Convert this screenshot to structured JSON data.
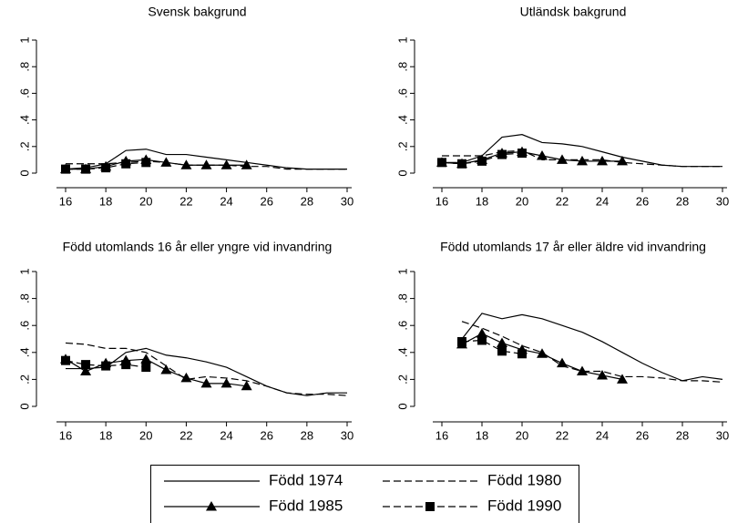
{
  "chart_data": [
    {
      "type": "line",
      "title": "Svensk bakgrund",
      "x": [
        16,
        17,
        18,
        19,
        20,
        21,
        22,
        23,
        24,
        25,
        26,
        27,
        28,
        29,
        30
      ],
      "xlim": [
        16,
        30
      ],
      "xticks": [
        16,
        18,
        20,
        22,
        24,
        26,
        28,
        30
      ],
      "ylim": [
        0,
        1
      ],
      "yticks": [
        0,
        {
          "value": 0.2,
          "label": ".2"
        },
        {
          "value": 0.4,
          "label": ".4"
        },
        {
          "value": 0.6,
          "label": ".6"
        },
        {
          "value": 0.8,
          "label": ".8"
        },
        1
      ],
      "series": [
        {
          "name": "Född 1974",
          "color": "#000000",
          "line_style": "solid",
          "values": [
            0.03,
            0.04,
            0.07,
            0.17,
            0.18,
            0.14,
            0.14,
            0.12,
            0.1,
            0.08,
            0.06,
            0.04,
            0.03,
            0.03,
            0.03
          ]
        },
        {
          "name": "Född 1980",
          "color": "#000000",
          "line_style": "dashed",
          "values": [
            0.07,
            0.07,
            0.07,
            0.08,
            0.09,
            0.08,
            0.06,
            0.06,
            0.06,
            0.05,
            0.05,
            0.03,
            0.03,
            0.03,
            0.03
          ]
        },
        {
          "name": "Född 1985",
          "color": "#000000",
          "line_style": "solid",
          "marker": "triangle",
          "values": [
            0.03,
            0.03,
            0.05,
            0.09,
            0.1,
            0.08,
            0.06,
            0.06,
            0.06,
            0.06,
            null,
            null,
            null,
            null,
            null
          ]
        },
        {
          "name": "Född 1990",
          "color": "#000000",
          "line_style": "dashed",
          "marker": "square",
          "values": [
            0.03,
            0.03,
            0.04,
            0.07,
            0.08,
            null,
            null,
            null,
            null,
            null,
            null,
            null,
            null,
            null,
            null
          ]
        }
      ]
    },
    {
      "type": "line",
      "title": "Utländsk bakgrund",
      "x": [
        16,
        17,
        18,
        19,
        20,
        21,
        22,
        23,
        24,
        25,
        26,
        27,
        28,
        29,
        30
      ],
      "xlim": [
        16,
        30
      ],
      "xticks": [
        16,
        18,
        20,
        22,
        24,
        26,
        28,
        30
      ],
      "ylim": [
        0,
        1
      ],
      "yticks": [
        0,
        {
          "value": 0.2,
          "label": ".2"
        },
        {
          "value": 0.4,
          "label": ".4"
        },
        {
          "value": 0.6,
          "label": ".6"
        },
        {
          "value": 0.8,
          "label": ".8"
        },
        1
      ],
      "series": [
        {
          "name": "Född 1974",
          "color": "#000000",
          "line_style": "solid",
          "values": [
            0.08,
            0.08,
            0.13,
            0.27,
            0.29,
            0.23,
            0.22,
            0.2,
            0.16,
            0.12,
            0.09,
            0.06,
            0.05,
            0.05,
            0.05
          ]
        },
        {
          "name": "Född 1980",
          "color": "#000000",
          "line_style": "dashed",
          "values": [
            0.13,
            0.13,
            0.13,
            0.16,
            0.17,
            0.1,
            0.1,
            0.1,
            0.1,
            0.08,
            0.07,
            0.06,
            0.05,
            0.05,
            0.05
          ]
        },
        {
          "name": "Född 1985",
          "color": "#000000",
          "line_style": "solid",
          "marker": "triangle",
          "values": [
            0.08,
            0.07,
            0.1,
            0.15,
            0.16,
            0.13,
            0.1,
            0.09,
            0.09,
            0.09,
            null,
            null,
            null,
            null,
            null
          ]
        },
        {
          "name": "Född 1990",
          "color": "#000000",
          "line_style": "dashed",
          "marker": "square",
          "values": [
            0.08,
            0.07,
            0.09,
            0.14,
            0.15,
            null,
            null,
            null,
            null,
            null,
            null,
            null,
            null,
            null,
            null
          ]
        }
      ]
    },
    {
      "type": "line",
      "title": "Född utomlands 16 år eller yngre vid invandring",
      "x": [
        16,
        17,
        18,
        19,
        20,
        21,
        22,
        23,
        24,
        25,
        26,
        27,
        28,
        29,
        30
      ],
      "xlim": [
        16,
        30
      ],
      "xticks": [
        16,
        18,
        20,
        22,
        24,
        26,
        28,
        30
      ],
      "ylim": [
        0,
        1
      ],
      "yticks": [
        0,
        {
          "value": 0.2,
          "label": ".2"
        },
        {
          "value": 0.4,
          "label": ".4"
        },
        {
          "value": 0.6,
          "label": ".6"
        },
        {
          "value": 0.8,
          "label": ".8"
        },
        1
      ],
      "series": [
        {
          "name": "Född 1974",
          "color": "#000000",
          "line_style": "solid",
          "values": [
            0.28,
            0.28,
            0.29,
            0.4,
            0.43,
            0.38,
            0.36,
            0.33,
            0.29,
            0.22,
            0.15,
            0.1,
            0.08,
            0.1,
            0.1
          ]
        },
        {
          "name": "Född 1980",
          "color": "#000000",
          "line_style": "dashed",
          "values": [
            0.47,
            0.46,
            0.43,
            0.43,
            0.4,
            0.3,
            0.2,
            0.22,
            0.21,
            0.19,
            0.15,
            0.1,
            0.09,
            0.09,
            0.08
          ]
        },
        {
          "name": "Född 1985",
          "color": "#000000",
          "line_style": "solid",
          "marker": "triangle",
          "values": [
            0.35,
            0.26,
            0.32,
            0.34,
            0.35,
            0.27,
            0.21,
            0.17,
            0.17,
            0.15,
            null,
            null,
            null,
            null,
            null
          ]
        },
        {
          "name": "Född 1990",
          "color": "#000000",
          "line_style": "dashed",
          "marker": "square",
          "values": [
            0.34,
            0.31,
            0.3,
            0.31,
            0.29,
            null,
            null,
            null,
            null,
            null,
            null,
            null,
            null,
            null,
            null
          ]
        }
      ]
    },
    {
      "type": "line",
      "title": "Född utomlands 17 år eller äldre vid invandring",
      "x": [
        16,
        17,
        18,
        19,
        20,
        21,
        22,
        23,
        24,
        25,
        26,
        27,
        28,
        29,
        30
      ],
      "xlim": [
        16,
        30
      ],
      "xticks": [
        16,
        18,
        20,
        22,
        24,
        26,
        28,
        30
      ],
      "ylim": [
        0,
        1
      ],
      "yticks": [
        0,
        {
          "value": 0.2,
          "label": ".2"
        },
        {
          "value": 0.4,
          "label": ".4"
        },
        {
          "value": 0.6,
          "label": ".6"
        },
        {
          "value": 0.8,
          "label": ".8"
        },
        1
      ],
      "series": [
        {
          "name": "Född 1974",
          "color": "#000000",
          "line_style": "solid",
          "values": [
            null,
            0.5,
            0.69,
            0.65,
            0.68,
            0.65,
            0.6,
            0.55,
            0.48,
            0.4,
            0.32,
            0.25,
            0.19,
            0.22,
            0.2
          ]
        },
        {
          "name": "Född 1980",
          "color": "#000000",
          "line_style": "dashed",
          "values": [
            null,
            0.63,
            0.58,
            0.52,
            0.45,
            0.4,
            0.3,
            0.26,
            0.26,
            0.22,
            0.22,
            0.21,
            0.19,
            0.19,
            0.18
          ]
        },
        {
          "name": "Född 1985",
          "color": "#000000",
          "line_style": "solid",
          "marker": "triangle",
          "values": [
            null,
            0.46,
            0.54,
            0.47,
            0.42,
            0.39,
            0.32,
            0.26,
            0.23,
            0.2,
            null,
            null,
            null,
            null,
            null
          ]
        },
        {
          "name": "Född 1990",
          "color": "#000000",
          "line_style": "dashed",
          "marker": "square",
          "values": [
            null,
            0.48,
            0.49,
            0.41,
            0.39,
            null,
            null,
            null,
            null,
            null,
            null,
            null,
            null,
            null,
            null
          ]
        }
      ]
    }
  ]
}
